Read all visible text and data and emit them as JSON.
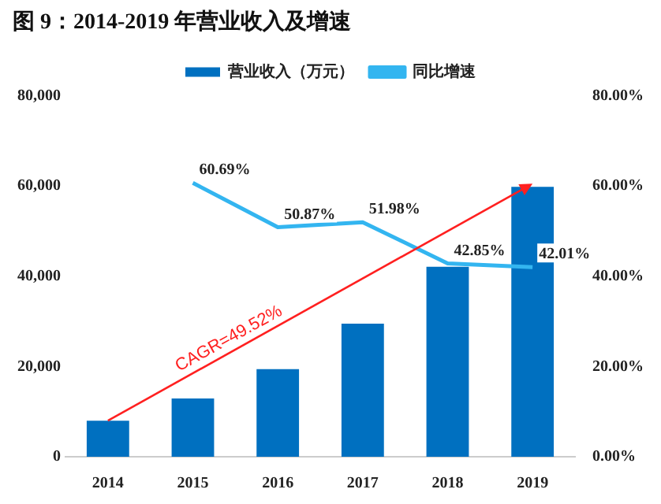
{
  "chart_data": {
    "type": "bar",
    "title": "图 9：2014-2019 年营业收入及增速",
    "categories": [
      "2014",
      "2015",
      "2016",
      "2017",
      "2018",
      "2019"
    ],
    "series": [
      {
        "name": "营业收入（万元）",
        "color": "#0070c0",
        "values": [
          8000,
          12900,
          19400,
          29500,
          42100,
          59800
        ]
      },
      {
        "name": "同比增速",
        "type": "line",
        "axis": "y2",
        "color": "#33b5f0",
        "values": [
          null,
          60.69,
          50.87,
          51.98,
          42.85,
          42.01
        ],
        "value_labels": [
          null,
          "60.69%",
          "50.87%",
          "51.98%",
          "42.85%",
          "42.01%"
        ]
      }
    ],
    "ylim": [
      0,
      80000
    ],
    "yticks": [
      {
        "value": 0,
        "label": "0"
      },
      {
        "value": 20000,
        "label": "20,000"
      },
      {
        "value": 40000,
        "label": "40,000"
      },
      {
        "value": 60000,
        "label": "60,000"
      },
      {
        "value": 80000,
        "label": "80,000"
      }
    ],
    "y2lim": [
      0,
      80
    ],
    "y2ticks": [
      {
        "value": 0,
        "label": "0.00%"
      },
      {
        "value": 20,
        "label": "20.00%"
      },
      {
        "value": 40,
        "label": "40.00%"
      },
      {
        "value": 60,
        "label": "60.00%"
      },
      {
        "value": 80,
        "label": "80.00%"
      }
    ],
    "annotations": [
      "CAGR=49.52%"
    ],
    "grid": false,
    "legend": "top",
    "marker": "none"
  }
}
